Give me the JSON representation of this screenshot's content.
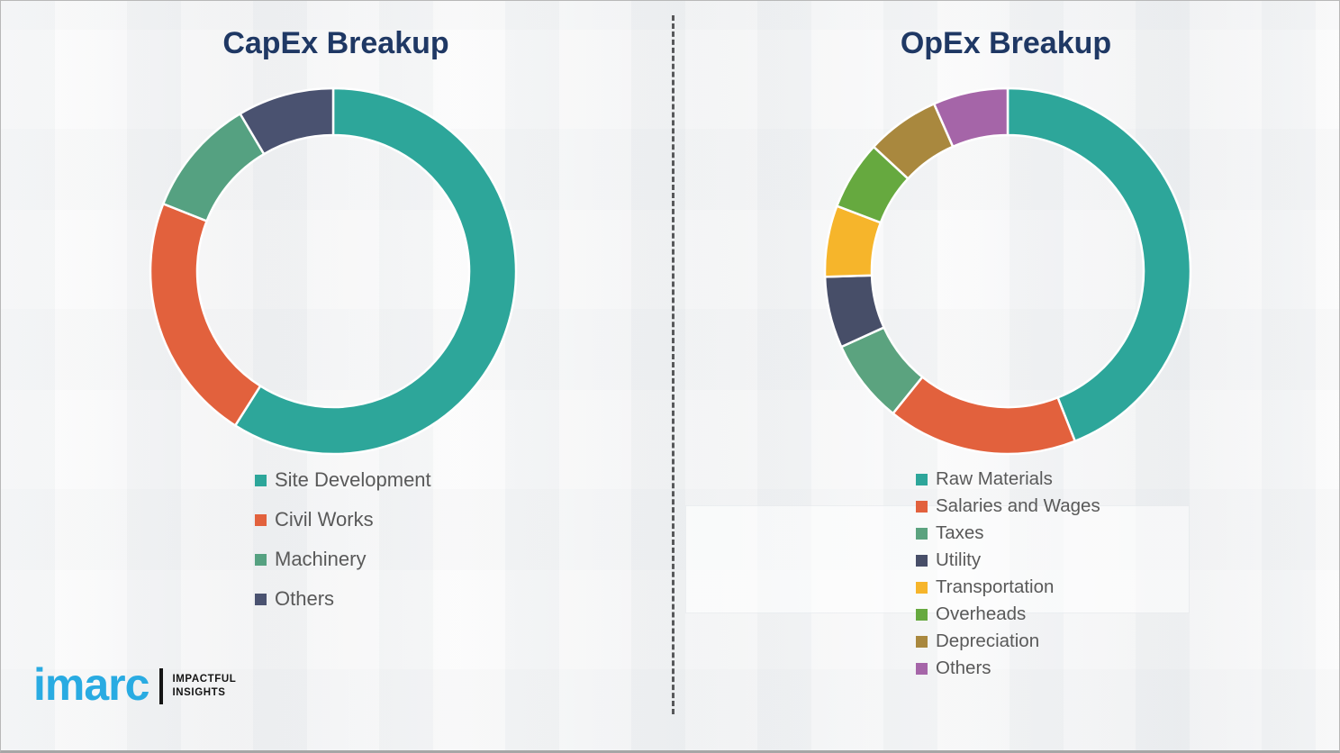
{
  "page": {
    "background_color": "#f2f2f3",
    "divider_color": "#57585a",
    "title_color": "#1f3864",
    "legend_text_color": "#595959"
  },
  "logo": {
    "brand": "imarc",
    "tagline_line1": "IMPACTFUL",
    "tagline_line2": "INSIGHTS",
    "brand_color": "#29abe2"
  },
  "chart_data": [
    {
      "type": "pie",
      "variant": "donut",
      "title": "CapEx Breakup",
      "labels": [
        "Site Development",
        "Civil Works",
        "Machinery",
        "Others"
      ],
      "values": [
        59,
        22,
        10.5,
        8.5
      ],
      "colors": [
        "#2da69a",
        "#e2613d",
        "#55a181",
        "#4a5270"
      ],
      "start_angle_deg": 0,
      "direction": "clockwise",
      "legend_position": "below"
    },
    {
      "type": "pie",
      "variant": "donut",
      "title": "OpEx Breakup",
      "labels": [
        "Raw Materials",
        "Salaries and Wages",
        "Taxes",
        "Utility",
        "Transportation",
        "Overheads",
        "Depreciation",
        "Others"
      ],
      "values": [
        44,
        16.8,
        7.4,
        6.3,
        6.3,
        6.1,
        6.5,
        6.6
      ],
      "colors": [
        "#2da69a",
        "#e2613d",
        "#5ba37f",
        "#474e68",
        "#f6b52b",
        "#66a93f",
        "#a9883e",
        "#a565a8"
      ],
      "start_angle_deg": 0,
      "direction": "clockwise",
      "legend_position": "below"
    }
  ]
}
